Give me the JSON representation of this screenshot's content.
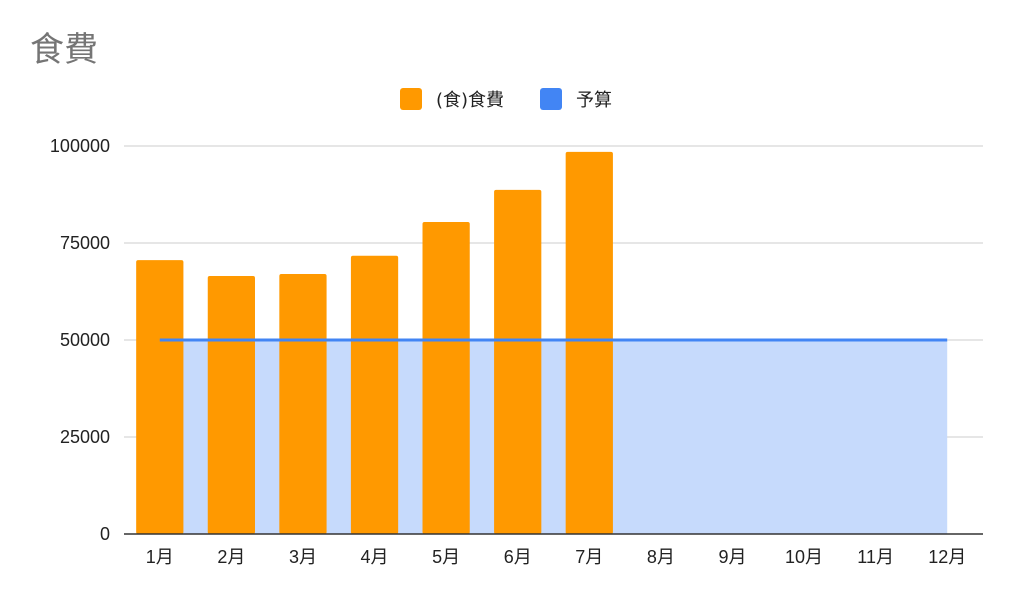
{
  "chart_data": {
    "type": "bar",
    "title": "食費",
    "categories": [
      "1月",
      "2月",
      "3月",
      "4月",
      "5月",
      "6月",
      "7月",
      "8月",
      "9月",
      "10月",
      "11月",
      "12月"
    ],
    "series": [
      {
        "name": "(食)食費",
        "type": "bar",
        "color": "#ff9900",
        "values": [
          70600,
          66500,
          67000,
          71700,
          80400,
          88700,
          98500,
          null,
          null,
          null,
          null,
          null
        ]
      },
      {
        "name": "予算",
        "type": "area",
        "color": "#4285f4",
        "fill": "#c6dafc",
        "values": [
          50000,
          50000,
          50000,
          50000,
          50000,
          50000,
          50000,
          50000,
          50000,
          50000,
          50000,
          50000
        ]
      }
    ],
    "ylim": [
      0,
      100000
    ],
    "yticks": [
      0,
      25000,
      50000,
      75000,
      100000
    ],
    "grid": true,
    "legend_position": "top"
  }
}
